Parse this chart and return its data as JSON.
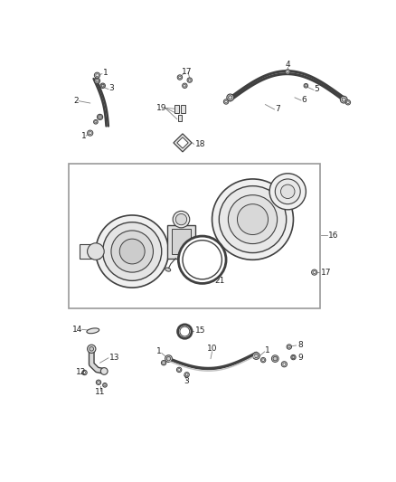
{
  "bg_color": "#ffffff",
  "fig_width": 4.38,
  "fig_height": 5.33,
  "dpi": 100,
  "part_color": "#404040",
  "line_color": "#606060",
  "text_color": "#222222",
  "leader_color": "#808080",
  "box_stroke": "#888888"
}
